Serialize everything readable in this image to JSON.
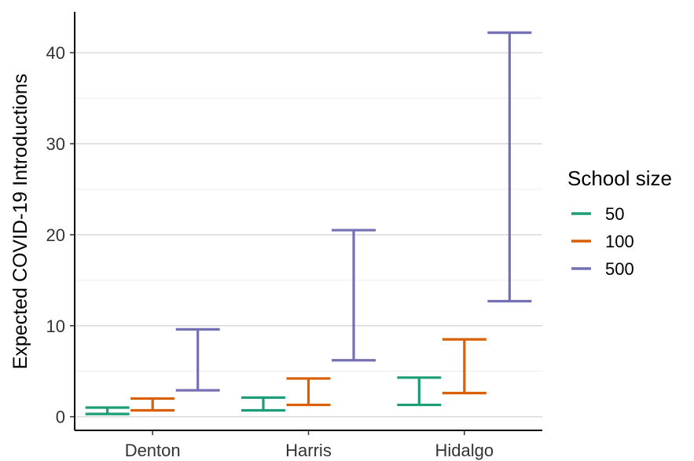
{
  "chart_data": {
    "type": "errorbar",
    "ylabel": "Expected COVID-19 Introductions",
    "xlabel": "",
    "categories": [
      "Denton",
      "Harris",
      "Hidalgo"
    ],
    "ylim": [
      -1.5,
      44.5
    ],
    "yticks": [
      0,
      10,
      20,
      30,
      40
    ],
    "grid": true,
    "legend": {
      "title": "School size",
      "position": "right"
    },
    "series": [
      {
        "name": "50",
        "color": "#1b9e77",
        "low": [
          0.3,
          0.7,
          1.3
        ],
        "high": [
          1.0,
          2.1,
          4.3
        ]
      },
      {
        "name": "100",
        "color": "#d95f02",
        "low": [
          0.7,
          1.3,
          2.6
        ],
        "high": [
          2.0,
          4.2,
          8.5
        ]
      },
      {
        "name": "500",
        "color": "#7570b3",
        "low": [
          2.9,
          6.2,
          12.7
        ],
        "high": [
          9.6,
          20.5,
          42.2
        ]
      }
    ]
  }
}
